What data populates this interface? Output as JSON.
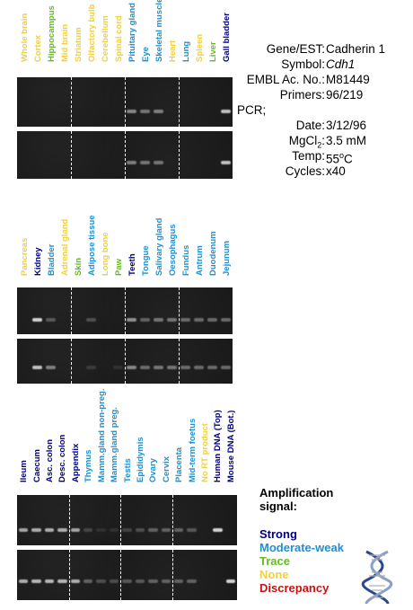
{
  "colors": {
    "strong": "#000080",
    "moderate_weak": "#1e90d0",
    "trace": "#66bb22",
    "none": "#f0d040",
    "discrepancy": "#cc1010"
  },
  "panels": [
    {
      "lanes": [
        {
          "label": "Whole brain",
          "level": "none"
        },
        {
          "label": "Cortex",
          "level": "none"
        },
        {
          "label": "Hippocampus",
          "level": "trace"
        },
        {
          "label": "Mid brain",
          "level": "none"
        },
        {
          "label": "Striatum",
          "level": "none"
        },
        {
          "label": "Olfactory bulb",
          "level": "none"
        },
        {
          "label": "Cerebellum",
          "level": "none"
        },
        {
          "label": "Spinal cord",
          "level": "none"
        },
        {
          "label": "Pituitary gland",
          "level": "moderate_weak"
        },
        {
          "label": "Eye",
          "level": "moderate_weak"
        },
        {
          "label": "Skeletal muscle",
          "level": "moderate_weak"
        },
        {
          "label": "Heart",
          "level": "none"
        },
        {
          "label": "Lung",
          "level": "moderate_weak"
        },
        {
          "label": "Spleen",
          "level": "none"
        },
        {
          "label": "Liver",
          "level": "trace"
        },
        {
          "label": "Gall bladder",
          "level": "strong"
        }
      ]
    },
    {
      "lanes": [
        {
          "label": "Pancreas",
          "level": "none"
        },
        {
          "label": "Kidney",
          "level": "strong"
        },
        {
          "label": "Bladder",
          "level": "moderate_weak"
        },
        {
          "label": "Adrenal gland",
          "level": "none"
        },
        {
          "label": "Skin",
          "level": "trace"
        },
        {
          "label": "Adipose tissue",
          "level": "moderate_weak"
        },
        {
          "label": "Long bone",
          "level": "none"
        },
        {
          "label": "Paw",
          "level": "trace"
        },
        {
          "label": "Teeth",
          "level": "strong"
        },
        {
          "label": "Tongue",
          "level": "moderate_weak"
        },
        {
          "label": "Salivary gland",
          "level": "moderate_weak"
        },
        {
          "label": "Oesophagus",
          "level": "moderate_weak"
        },
        {
          "label": "Fundus",
          "level": "moderate_weak"
        },
        {
          "label": "Antrum",
          "level": "moderate_weak"
        },
        {
          "label": "Duodenum",
          "level": "moderate_weak"
        },
        {
          "label": "Jejunum",
          "level": "moderate_weak"
        }
      ]
    },
    {
      "lanes": [
        {
          "label": "Ileum",
          "level": "strong"
        },
        {
          "label": "Caecum",
          "level": "strong"
        },
        {
          "label": "Asc. colon",
          "level": "strong"
        },
        {
          "label": "Desc. colon",
          "level": "strong"
        },
        {
          "label": "Appendix",
          "level": "strong"
        },
        {
          "label": "Thymus",
          "level": "moderate_weak"
        },
        {
          "label": "Mamm.gland non-preg.",
          "level": "moderate_weak"
        },
        {
          "label": "Mamm.gland preg.",
          "level": "moderate_weak"
        },
        {
          "label": "Testis",
          "level": "moderate_weak"
        },
        {
          "label": "Epididymis",
          "level": "moderate_weak"
        },
        {
          "label": "Ovary",
          "level": "moderate_weak"
        },
        {
          "label": "Cervix",
          "level": "moderate_weak"
        },
        {
          "label": "Placenta",
          "level": "moderate_weak"
        },
        {
          "label": "Mid-term foetus",
          "level": "moderate_weak"
        },
        {
          "label": "No RT product",
          "level": "none"
        },
        {
          "label": "Human DNA (Top)",
          "level": "strong"
        },
        {
          "label": "Mouse DNA (Bot.)",
          "level": "strong"
        }
      ]
    }
  ],
  "info": {
    "gene_key": "Gene/EST:",
    "gene_val": "Cadherin 1",
    "symbol_key": "Symbol:",
    "symbol_val": "Cdh1",
    "embl_key": "EMBL Ac. No.:",
    "embl_val": "M81449",
    "primers_key": "Primers:",
    "primers_val": "96/219",
    "pcr_label": "PCR;",
    "date_key": "Date:",
    "date_val": "3/12/96",
    "mgcl_key_pre": "MgCl",
    "mgcl_sub": "2",
    "mgcl_key_post": ":",
    "mgcl_val": "3.5 mM",
    "temp_key": "Temp:",
    "temp_val_num": "55",
    "temp_val_sup": "o",
    "temp_val_unit": "C",
    "cycles_key": "Cycles:",
    "cycles_val": "x40"
  },
  "legend": {
    "title_line1": "Amplification",
    "title_line2": "signal:",
    "strong": "Strong",
    "moderate_weak": "Moderate-weak",
    "trace": "Trace",
    "none": "None",
    "discrepancy": "Discrepancy"
  },
  "bands": {
    "panel1_top": [
      0,
      0,
      0,
      0,
      0,
      0,
      0,
      0,
      0.55,
      0.45,
      0.5,
      0,
      0,
      0,
      0,
      0.85
    ],
    "panel1_bot": [
      0,
      0,
      0,
      0,
      0,
      0,
      0,
      0,
      0.5,
      0.45,
      0.45,
      0,
      0,
      0,
      0,
      0.85
    ],
    "panel2_top": [
      0,
      0.95,
      0.3,
      0,
      0,
      0.25,
      0,
      0,
      0.6,
      0.35,
      0.45,
      0.45,
      0.4,
      0.4,
      0.4,
      0.4
    ],
    "panel2_bot": [
      0,
      0.85,
      0.5,
      0,
      0,
      0.15,
      0,
      0.1,
      0.55,
      0.4,
      0.45,
      0.45,
      0.4,
      0.4,
      0.4,
      0.4
    ],
    "panel3_top": [
      0.7,
      0.75,
      0.75,
      0.75,
      0.7,
      0.2,
      0.1,
      0.1,
      0.2,
      0.25,
      0.35,
      0.35,
      0.35,
      0.3,
      0,
      0.95,
      0
    ],
    "panel3_bot": [
      0.75,
      0.8,
      0.8,
      0.8,
      0.75,
      0.35,
      0.25,
      0.25,
      0.3,
      0.3,
      0.35,
      0.35,
      0.35,
      0.35,
      0,
      0,
      0.95
    ]
  }
}
